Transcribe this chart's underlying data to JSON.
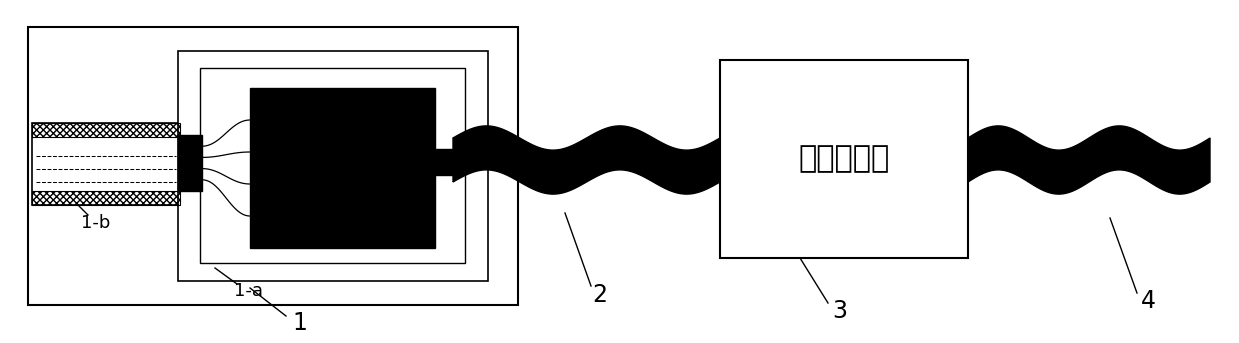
{
  "bg_color": "#ffffff",
  "line_color": "#000000",
  "amplifier_text": "变送放大器",
  "label_1": "1",
  "label_1a": "1-a",
  "label_1b": "1-b",
  "label_2": "2",
  "label_3": "3",
  "label_4": "4",
  "fig_width": 12.39,
  "fig_height": 3.43,
  "dpi": 100
}
